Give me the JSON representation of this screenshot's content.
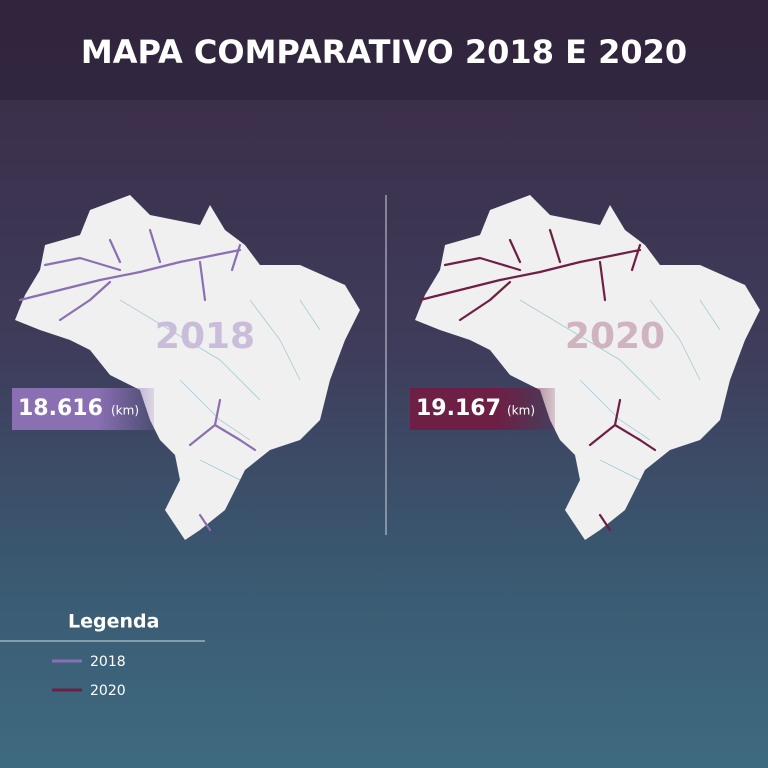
{
  "header": {
    "title": "MAPA COMPARATIVO 2018 E 2020"
  },
  "maps": [
    {
      "year": "2018",
      "value": "18.616",
      "unit": "(km)",
      "color": "#8a6fb3"
    },
    {
      "year": "2020",
      "value": "19.167",
      "unit": "(km)",
      "color": "#6e1f45"
    }
  ],
  "legend": {
    "title": "Legenda",
    "items": [
      {
        "label": "2018",
        "color": "#8a6fb3"
      },
      {
        "label": "2020",
        "color": "#6e1f45"
      }
    ]
  }
}
